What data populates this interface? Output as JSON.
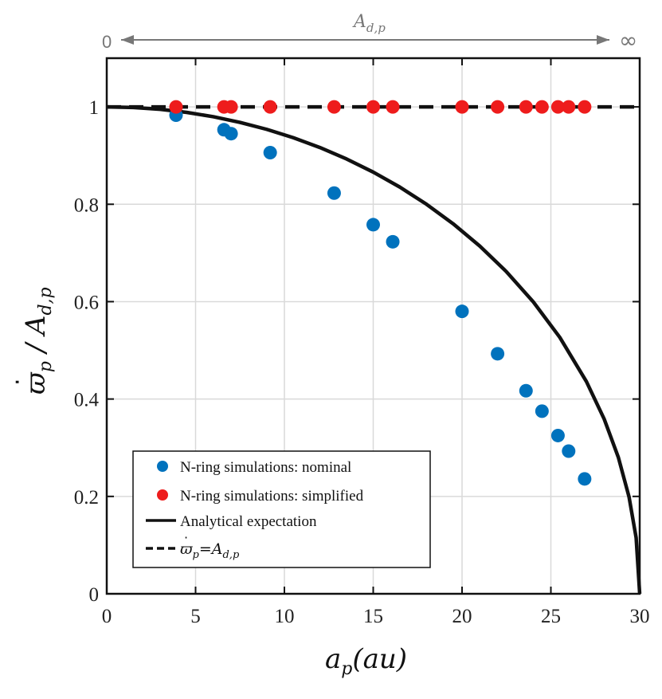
{
  "chart_data": {
    "type": "scatter",
    "xlabel_base": "a",
    "xlabel_sub": "p",
    "xlabel_rest": "(au)",
    "ylabel_base": "ϖ",
    "ylabel_sub": "p",
    "ylabel_rest": " / A",
    "ylabel_sub2": "d,p",
    "xlim": [
      0,
      30
    ],
    "ylim": [
      0,
      1.1
    ],
    "xticks": [
      0,
      5,
      10,
      15,
      20,
      25,
      30
    ],
    "yticks": [
      0,
      0.2,
      0.4,
      0.6,
      0.8,
      1
    ],
    "xtick_labels": [
      "0",
      "5",
      "10",
      "15",
      "20",
      "25",
      "30"
    ],
    "ytick_labels": [
      "0",
      "0.2",
      "0.4",
      "0.6",
      "0.8",
      "1"
    ],
    "grid": true,
    "legend_position": "bottom-left",
    "top_annotation": {
      "label_base": "A",
      "label_sub": "d,p",
      "left_text": "0",
      "right_text": "∞"
    },
    "series": [
      {
        "name": "N-ring simulations: nominal",
        "kind": "scatter",
        "color": "#0072BD",
        "x": [
          3.9,
          6.6,
          7.0,
          9.2,
          12.8,
          15.0,
          16.1,
          20.0,
          22.0,
          23.6,
          24.5,
          25.4,
          26.0,
          26.9
        ],
        "y": [
          0.983,
          0.953,
          0.945,
          0.906,
          0.823,
          0.758,
          0.723,
          0.58,
          0.493,
          0.417,
          0.375,
          0.325,
          0.293,
          0.236
        ]
      },
      {
        "name": "N-ring simulations: simplified",
        "kind": "scatter",
        "color": "#EE1C1C",
        "x": [
          3.9,
          6.6,
          7.0,
          9.2,
          12.8,
          15.0,
          16.1,
          20.0,
          22.0,
          23.6,
          24.5,
          25.4,
          26.0,
          26.9
        ],
        "y": [
          1,
          1,
          1,
          1,
          1,
          1,
          1,
          1,
          1,
          1,
          1,
          1,
          1,
          1
        ]
      },
      {
        "name": "Analytical expectation",
        "kind": "line",
        "style": "solid",
        "color": "#111111",
        "formula": "sqrt(1 - (x/30)^2)",
        "x": [
          0,
          1.5,
          3,
          4.5,
          6,
          7.5,
          9,
          10.5,
          12,
          13.5,
          15,
          16.5,
          18,
          19.5,
          21,
          22.5,
          24,
          25.5,
          27,
          28,
          28.8,
          29.4,
          29.8,
          30
        ],
        "y": [
          1.0,
          0.9987,
          0.995,
          0.9887,
          0.9798,
          0.9682,
          0.9539,
          0.9367,
          0.9165,
          0.893,
          0.866,
          0.8352,
          0.8,
          0.7599,
          0.7141,
          0.6614,
          0.6,
          0.5268,
          0.4359,
          0.359,
          0.28,
          0.199,
          0.115,
          0
        ]
      },
      {
        "name_base": "ϖ",
        "name_sub": "p",
        "name_eq": "=A",
        "name_sub2": "d,p",
        "kind": "line",
        "style": "dashed",
        "color": "#111111",
        "x": [
          0,
          30
        ],
        "y": [
          1,
          1
        ]
      }
    ]
  }
}
